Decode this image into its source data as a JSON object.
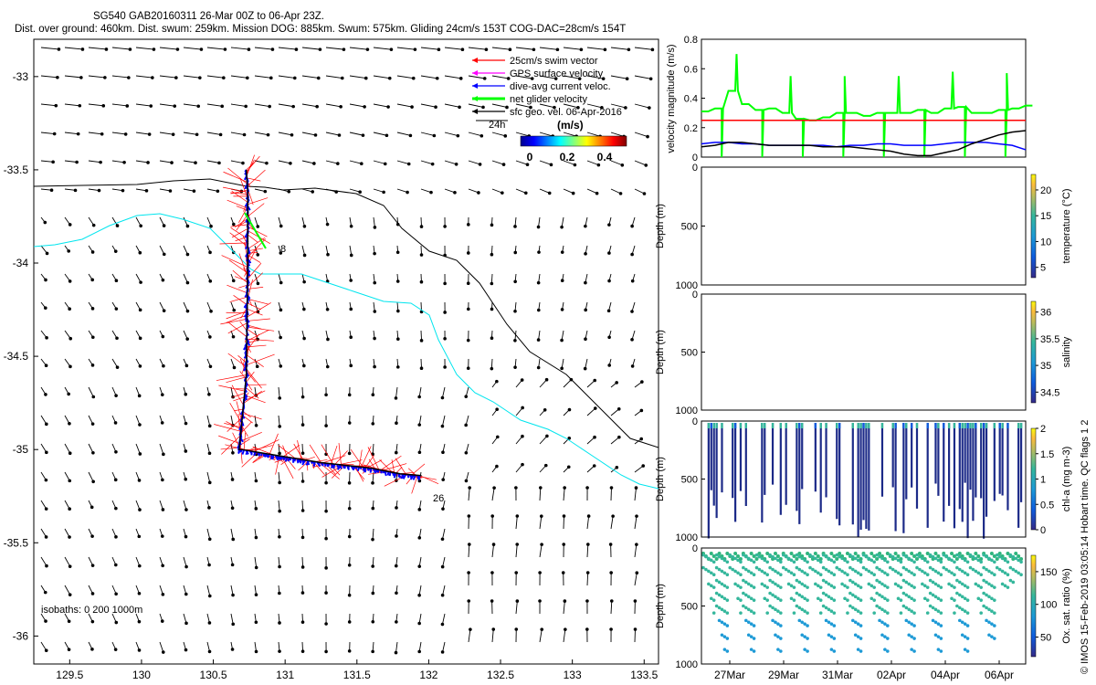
{
  "header": {
    "title": "SG540 GAB20160311 26-Mar 00Z to 06-Apr 23Z.",
    "subtitle": "Dist. over ground: 460km. Dist. swum: 259km. Mission DOG: 885km. Swum: 575km. Gliding 24cm/s 153T COG-DAC=28cm/s 154T"
  },
  "map": {
    "legend": [
      {
        "label": "25cm/s swim vector",
        "color": "#ff0000"
      },
      {
        "label": "GPS surface velocity",
        "color": "#ff00ff"
      },
      {
        "label": "dive-avg current veloc.",
        "color": "#0000ff"
      },
      {
        "label": "net glider velocity",
        "color": "#00ff00"
      },
      {
        "label": "sfc geo. vel. 06-Apr-2016",
        "color": "#000000"
      }
    ],
    "ref_arrow_label": "24h",
    "colorbar_title": "(m/s)",
    "colorbar_ticks": [
      "0",
      "0.2",
      "0.4"
    ],
    "isobath_label": "isobaths: 0   200  1000m",
    "start_label": "8",
    "end_label": "26",
    "x_ticks": [
      "129.5",
      "130",
      "130.5",
      "131",
      "131.5",
      "132",
      "132.5",
      "133",
      "133.5"
    ],
    "y_ticks": [
      "-33",
      "-33.5",
      "-34",
      "-34.5",
      "-35",
      "-35.5",
      "-36"
    ]
  },
  "velocity_panel": {
    "ylabel": "velocity magnitude (m/s)",
    "y_ticks": [
      "0",
      "0.2",
      "0.4",
      "0.6",
      "0.8"
    ]
  },
  "sections": [
    {
      "label": "temperature (°C)",
      "cbar_ticks": [
        "5",
        "10",
        "15",
        "20"
      ]
    },
    {
      "label": "salinity",
      "cbar_ticks": [
        "34.5",
        "35",
        "35.5",
        "36"
      ]
    },
    {
      "label": "chl-a (mg m-3)",
      "cbar_ticks": [
        "0",
        "0.5",
        "1",
        "1.5",
        "2"
      ]
    },
    {
      "label": "Ox. sat. ratio (%)",
      "cbar_ticks": [
        "50",
        "100",
        "150"
      ]
    }
  ],
  "depth_label": "Depth (m)",
  "depth_ticks": [
    "0",
    "500",
    "1000"
  ],
  "time_ticks": [
    "27Mar",
    "29Mar",
    "31Mar",
    "02Apr",
    "04Apr",
    "06Apr"
  ],
  "side_note": "© IMOS 15-Feb-2019 03:05:14 Hobart time. QC flags 1  2",
  "colors": {
    "swim": "#ff0000",
    "current": "#0000ff",
    "net": "#00ff00",
    "isobath_200": "#000000",
    "isobath_1000": "#00e5ee"
  },
  "chart_data": [
    {
      "type": "scatter",
      "title": "SG540 GAB20160311 26-Mar 00Z to 06-Apr 23Z.",
      "xlabel": "",
      "ylabel": "",
      "xlim": [
        129.25,
        133.6
      ],
      "ylim": [
        -36.15,
        -32.8
      ],
      "track": {
        "lon": [
          130.73,
          130.74,
          130.74,
          130.73,
          130.68,
          130.7,
          130.85,
          131.25,
          131.6,
          131.8,
          131.95
        ],
        "lat": [
          -33.5,
          -33.62,
          -34.0,
          -34.6,
          -35.0,
          -35.0,
          -35.02,
          -35.07,
          -35.1,
          -35.13,
          -35.14
        ]
      }
    },
    {
      "type": "line",
      "ylabel": "velocity magnitude (m/s)",
      "x": [
        0,
        0.5,
        1,
        1.5,
        2,
        2.5,
        3,
        3.5,
        4,
        4.5,
        5,
        5.5,
        6,
        6.5,
        7,
        7.5,
        8,
        8.5,
        9,
        9.5,
        10,
        10.5,
        11,
        11.5,
        12
      ],
      "ylim": [
        0,
        0.8
      ],
      "series": [
        {
          "values": [
            0.31,
            0.33,
            0.45,
            0.36,
            0.32,
            0.33,
            0.3,
            0.26,
            0.25,
            0.27,
            0.3,
            0.3,
            0.28,
            0.3,
            0.3,
            0.3,
            0.32,
            0.3,
            0.33,
            0.34,
            0.3,
            0.3,
            0.32,
            0.33,
            0.35
          ]
        },
        {
          "values": [
            0.09,
            0.1,
            0.1,
            0.09,
            0.09,
            0.08,
            0.08,
            0.08,
            0.08,
            0.08,
            0.07,
            0.08,
            0.08,
            0.09,
            0.09,
            0.08,
            0.08,
            0.08,
            0.09,
            0.1,
            0.1,
            0.1,
            0.09,
            0.08,
            0.05
          ]
        },
        {
          "values": [
            0.07,
            0.08,
            0.1,
            0.1,
            0.09,
            0.08,
            0.08,
            0.08,
            0.08,
            0.07,
            0.07,
            0.07,
            0.06,
            0.05,
            0.04,
            0.02,
            0.01,
            0.01,
            0.03,
            0.05,
            0.09,
            0.12,
            0.15,
            0.17,
            0.18
          ]
        },
        {
          "values": [
            0.25,
            0.25,
            0.25,
            0.25,
            0.25,
            0.25,
            0.25,
            0.25,
            0.25,
            0.25,
            0.25,
            0.25,
            0.25,
            0.25,
            0.25,
            0.25,
            0.25,
            0.25,
            0.25,
            0.25,
            0.25,
            0.25,
            0.25,
            0.25,
            0.25
          ]
        }
      ]
    },
    {
      "type": "heatmap",
      "ylabel": "Depth (m)",
      "ylim": [
        1000,
        0
      ],
      "colorbar_label": "temperature (°C)",
      "clim": [
        3,
        23
      ]
    },
    {
      "type": "heatmap",
      "ylabel": "Depth (m)",
      "ylim": [
        1000,
        0
      ],
      "colorbar_label": "salinity",
      "clim": [
        34.3,
        36.2
      ]
    },
    {
      "type": "heatmap",
      "ylabel": "Depth (m)",
      "ylim": [
        1000,
        0
      ],
      "colorbar_label": "chl-a (mg m-3)",
      "clim": [
        0,
        2
      ]
    },
    {
      "type": "heatmap",
      "ylabel": "Depth (m)",
      "ylim": [
        1000,
        0
      ],
      "colorbar_label": "Ox. sat. ratio (%)",
      "clim": [
        20,
        175
      ]
    }
  ]
}
